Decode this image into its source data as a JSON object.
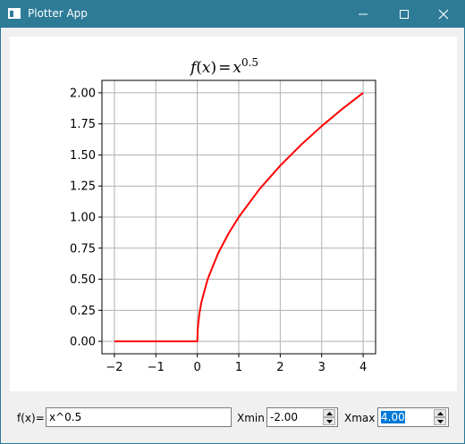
{
  "window": {
    "title": "Plotter App",
    "icon": "window-app-icon",
    "controls": [
      "minimize-icon",
      "maximize-icon",
      "close-icon"
    ],
    "titlebar_color": "#2d7b97"
  },
  "chart_data": {
    "type": "line",
    "title": "f(x)= x^0.5",
    "title_parts": {
      "lead": "f",
      "paren_open": "(",
      "var": "x",
      "paren_close": ")",
      "eq": "=",
      "base": "x",
      "exp": "0.5"
    },
    "xlabel": "",
    "ylabel": "",
    "xlim": [
      -2.3,
      4.3
    ],
    "ylim": [
      -0.1,
      2.1
    ],
    "xticks": [
      -2,
      -1,
      0,
      1,
      2,
      3,
      4
    ],
    "xtick_labels": [
      "−2",
      "−1",
      "0",
      "1",
      "2",
      "3",
      "4"
    ],
    "yticks": [
      0.0,
      0.25,
      0.5,
      0.75,
      1.0,
      1.25,
      1.5,
      1.75,
      2.0
    ],
    "ytick_labels": [
      "0.00",
      "0.25",
      "0.50",
      "0.75",
      "1.00",
      "1.25",
      "1.50",
      "1.75",
      "2.00"
    ],
    "grid": true,
    "series": [
      {
        "color": "#ff0000",
        "function": "x^0.5",
        "x": [
          -2.0,
          -1.0,
          0.0,
          0.0,
          0.01,
          0.05,
          0.1,
          0.25,
          0.5,
          0.75,
          1.0,
          1.5,
          2.0,
          2.5,
          3.0,
          3.5,
          4.0
        ],
        "y": [
          0.0,
          0.0,
          0.0,
          0.0,
          0.1,
          0.224,
          0.316,
          0.5,
          0.707,
          0.866,
          1.0,
          1.225,
          1.414,
          1.581,
          1.732,
          1.871,
          2.0
        ]
      }
    ]
  },
  "controls": {
    "fx_label": "f(x)=",
    "fx_value": "x^0.5",
    "xmin_label": "Xmin",
    "xmin_value": "-2.00",
    "xmax_label": "Xmax",
    "xmax_value": "4.00",
    "selection_color": "#0078d7"
  }
}
